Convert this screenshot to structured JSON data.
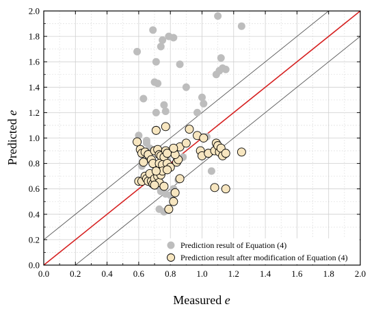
{
  "chart_data": {
    "type": "scatter",
    "xlabel": "Measured",
    "xlabel_var": "e",
    "ylabel": "Predicted",
    "ylabel_var": "e",
    "xlim": [
      0,
      2.0
    ],
    "ylim": [
      0,
      2.0
    ],
    "x_ticks": [
      "0.0",
      "0.2",
      "0.4",
      "0.6",
      "0.8",
      "1.0",
      "1.2",
      "1.4",
      "1.6",
      "1.8",
      "2.0"
    ],
    "y_ticks": [
      "0.0",
      "0.2",
      "0.4",
      "0.6",
      "0.8",
      "1.0",
      "1.2",
      "1.4",
      "1.6",
      "1.8",
      "2.0"
    ],
    "grid": true,
    "legend_position": "bottom-right",
    "lines": [
      {
        "kind": "y=x",
        "intercept": 0.0,
        "color": "#d62020"
      },
      {
        "kind": "upper-bound",
        "intercept": 0.2,
        "color": "#555555"
      },
      {
        "kind": "lower-bound",
        "intercept": -0.2,
        "color": "#555555"
      }
    ],
    "series": [
      {
        "name": "Prediction result of Equation (4)",
        "color": "#bdbdbd",
        "points": [
          [
            0.59,
            1.68
          ],
          [
            0.6,
            1.02
          ],
          [
            0.63,
            1.31
          ],
          [
            0.65,
            0.98
          ],
          [
            0.64,
            0.88
          ],
          [
            0.67,
            0.92
          ],
          [
            0.69,
            1.85
          ],
          [
            0.7,
            1.44
          ],
          [
            0.71,
            1.6
          ],
          [
            0.72,
            1.43
          ],
          [
            0.71,
            1.2
          ],
          [
            0.74,
            1.72
          ],
          [
            0.75,
            1.77
          ],
          [
            0.76,
            1.26
          ],
          [
            0.77,
            1.21
          ],
          [
            0.79,
            1.8
          ],
          [
            0.82,
            1.79
          ],
          [
            0.8,
            0.9
          ],
          [
            0.78,
            0.83
          ],
          [
            0.74,
            0.8
          ],
          [
            0.72,
            0.75
          ],
          [
            0.7,
            0.69
          ],
          [
            0.68,
            0.64
          ],
          [
            0.72,
            0.62
          ],
          [
            0.74,
            0.58
          ],
          [
            0.77,
            0.56
          ],
          [
            0.8,
            0.55
          ],
          [
            0.82,
            0.6
          ],
          [
            0.85,
            0.67
          ],
          [
            0.86,
            1.58
          ],
          [
            0.9,
            1.4
          ],
          [
            0.97,
            1.2
          ],
          [
            1.0,
            1.32
          ],
          [
            1.01,
            1.27
          ],
          [
            1.03,
            1.01
          ],
          [
            1.06,
            0.74
          ],
          [
            1.09,
            1.5
          ],
          [
            1.1,
            1.96
          ],
          [
            1.11,
            1.53
          ],
          [
            1.12,
            1.63
          ],
          [
            1.13,
            1.55
          ],
          [
            1.15,
            1.54
          ],
          [
            1.25,
            1.88
          ],
          [
            0.73,
            0.44
          ],
          [
            0.76,
            0.42
          ],
          [
            0.84,
            0.83
          ],
          [
            0.88,
            0.85
          ],
          [
            0.65,
            0.96
          ],
          [
            0.62,
            0.78
          ],
          [
            0.69,
            0.79
          ]
        ]
      },
      {
        "name": "Prediction result after modification of Equation (4)",
        "color": "#f7e6c0",
        "points": [
          [
            0.59,
            0.97
          ],
          [
            0.61,
            0.91
          ],
          [
            0.62,
            0.88
          ],
          [
            0.63,
            0.81
          ],
          [
            0.64,
            0.89
          ],
          [
            0.66,
            0.87
          ],
          [
            0.68,
            0.83
          ],
          [
            0.69,
            0.8
          ],
          [
            0.7,
            0.9
          ],
          [
            0.71,
            1.06
          ],
          [
            0.72,
            0.91
          ],
          [
            0.73,
            0.87
          ],
          [
            0.74,
            0.86
          ],
          [
            0.76,
            0.85
          ],
          [
            0.77,
            0.9
          ],
          [
            0.77,
            1.09
          ],
          [
            0.78,
            0.88
          ],
          [
            0.73,
            0.8
          ],
          [
            0.75,
            0.79
          ],
          [
            0.78,
            0.8
          ],
          [
            0.8,
            0.77
          ],
          [
            0.6,
            0.66
          ],
          [
            0.62,
            0.66
          ],
          [
            0.64,
            0.7
          ],
          [
            0.65,
            0.68
          ],
          [
            0.66,
            0.66
          ],
          [
            0.67,
            0.72
          ],
          [
            0.68,
            0.66
          ],
          [
            0.69,
            0.64
          ],
          [
            0.7,
            0.68
          ],
          [
            0.72,
            0.7
          ],
          [
            0.73,
            0.65
          ],
          [
            0.74,
            0.71
          ],
          [
            0.75,
            0.74
          ],
          [
            0.76,
            0.62
          ],
          [
            0.78,
            0.75
          ],
          [
            0.79,
            0.44
          ],
          [
            0.82,
            0.5
          ],
          [
            0.83,
            0.57
          ],
          [
            0.84,
            0.81
          ],
          [
            0.85,
            0.83
          ],
          [
            0.86,
            0.93
          ],
          [
            0.86,
            0.68
          ],
          [
            0.9,
            0.96
          ],
          [
            0.92,
            1.07
          ],
          [
            0.97,
            1.02
          ],
          [
            0.99,
            0.9
          ],
          [
            1.0,
            0.86
          ],
          [
            1.01,
            1.0
          ],
          [
            1.04,
            0.88
          ],
          [
            1.08,
            0.9
          ],
          [
            1.09,
            0.96
          ],
          [
            1.1,
            0.94
          ],
          [
            1.11,
            0.89
          ],
          [
            1.12,
            0.92
          ],
          [
            1.13,
            0.86
          ],
          [
            1.15,
            0.88
          ],
          [
            1.08,
            0.61
          ],
          [
            1.15,
            0.6
          ],
          [
            1.25,
            0.89
          ],
          [
            0.83,
            0.87
          ],
          [
            0.82,
            0.92
          ],
          [
            0.7,
            0.63
          ],
          [
            0.71,
            0.74
          ]
        ]
      }
    ]
  }
}
